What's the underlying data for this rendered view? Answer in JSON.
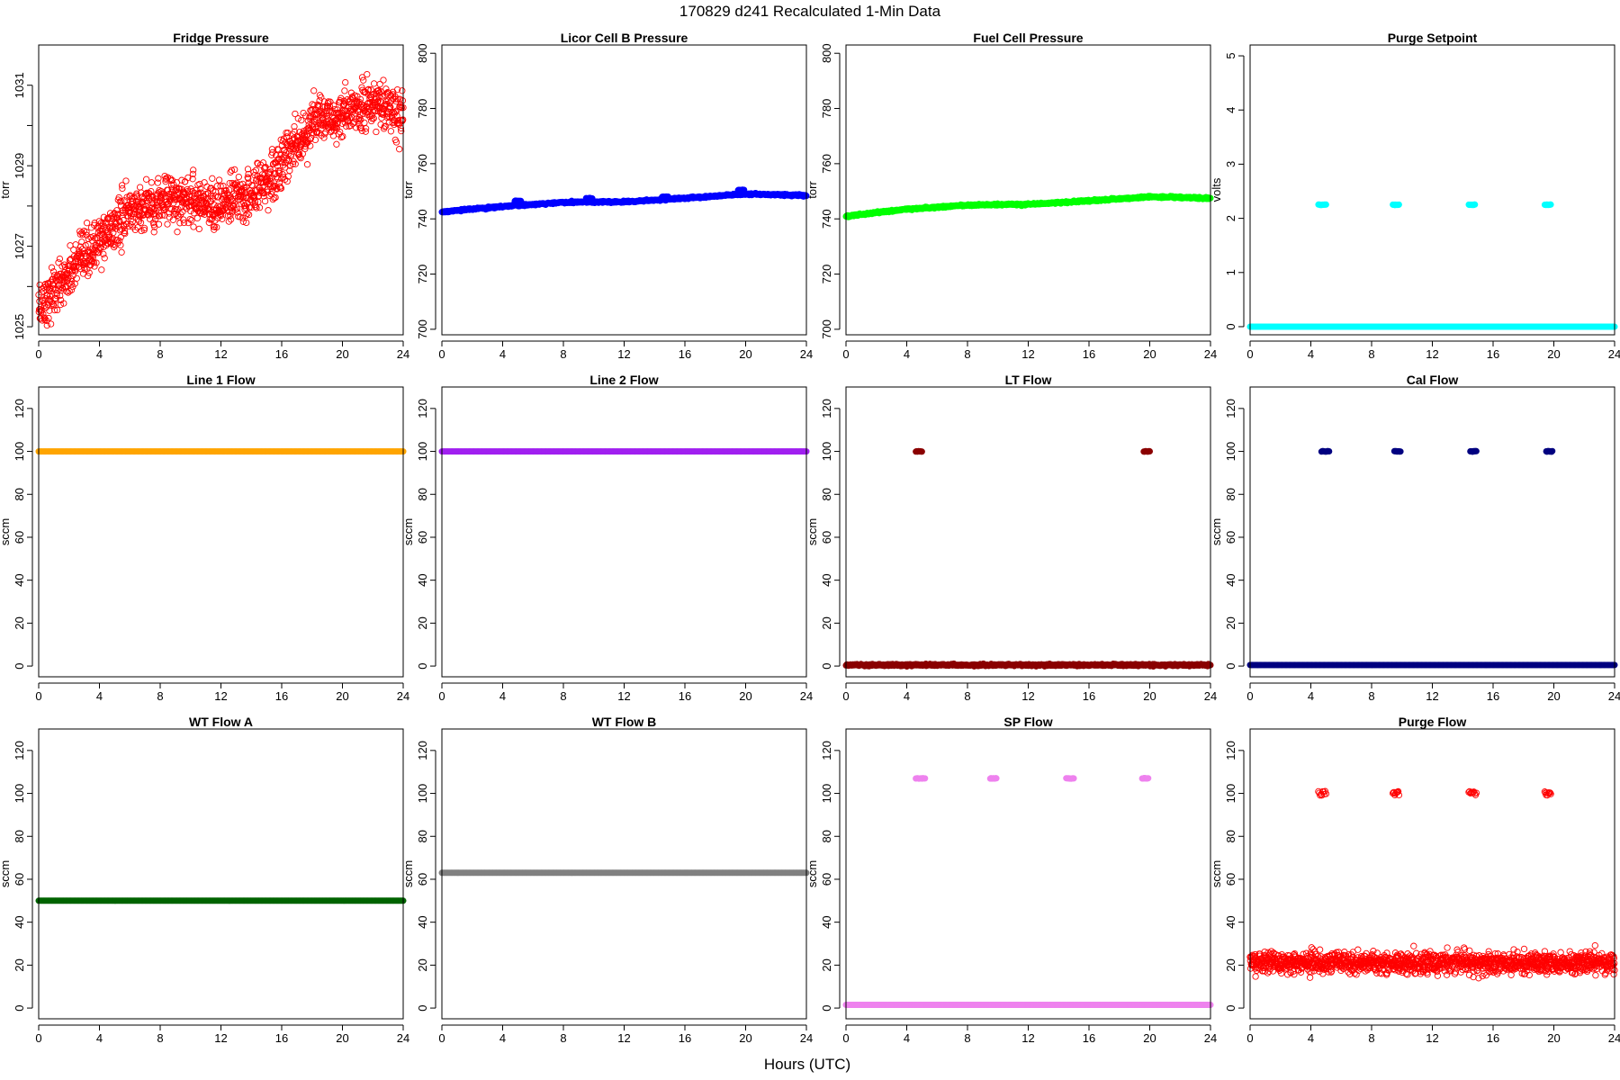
{
  "figure": {
    "title": "170829   d241   Recalculated 1-Min Data",
    "xlabel": "Hours (UTC)"
  },
  "chart_data": [
    {
      "type": "scatter",
      "title": "Fridge Pressure",
      "ylabel": "torr",
      "color": "#ff0000",
      "marker": "open",
      "xlim": [
        0,
        24
      ],
      "ylim": [
        1024.8,
        1032
      ],
      "xticks": [
        0,
        4,
        8,
        12,
        16,
        20,
        24
      ],
      "yticks": [
        1025,
        1027,
        1029,
        1031
      ],
      "minor_yticks": [
        1026,
        1028,
        1030
      ],
      "series": [
        {
          "x": [
            0,
            2,
            4,
            6,
            8,
            10,
            12,
            14,
            16,
            17,
            18,
            20,
            22,
            24
          ],
          "y": [
            1025.5,
            1026.3,
            1027.1,
            1027.9,
            1028.1,
            1028.2,
            1028.0,
            1028.3,
            1029.0,
            1029.6,
            1030.1,
            1030.2,
            1030.6,
            1030.2
          ],
          "noise": 0.55
        }
      ]
    },
    {
      "type": "scatter",
      "title": "Licor Cell B Pressure",
      "ylabel": "torr",
      "color": "#0000ff",
      "marker": "filled",
      "xlim": [
        0,
        24
      ],
      "ylim": [
        698,
        803
      ],
      "xticks": [
        0,
        4,
        8,
        12,
        16,
        20,
        24
      ],
      "yticks": [
        700,
        720,
        740,
        760,
        780,
        800
      ],
      "series": [
        {
          "x": [
            0,
            4,
            8,
            12,
            16,
            20,
            24
          ],
          "y": [
            742.5,
            744.5,
            746,
            746.2,
            747.5,
            749,
            748.5
          ],
          "noise": 0.3
        }
      ],
      "events": [
        {
          "x": [
            4.8,
            5.2
          ],
          "y": 746.5
        },
        {
          "x": [
            9.5,
            9.9
          ],
          "y": 747.5
        },
        {
          "x": [
            14.5,
            14.9
          ],
          "y": 748
        },
        {
          "x": [
            19.5,
            19.9
          ],
          "y": 750.5
        }
      ]
    },
    {
      "type": "scatter",
      "title": "Fuel Cell Pressure",
      "ylabel": "torr",
      "color": "#00ff00",
      "marker": "filled",
      "xlim": [
        0,
        24
      ],
      "ylim": [
        698,
        803
      ],
      "xticks": [
        0,
        4,
        8,
        12,
        16,
        20,
        24
      ],
      "yticks": [
        700,
        720,
        740,
        760,
        780,
        800
      ],
      "series": [
        {
          "x": [
            0,
            4,
            8,
            12,
            16,
            20,
            24
          ],
          "y": [
            741,
            743.5,
            745,
            745.3,
            746.5,
            748,
            747.5
          ],
          "noise": 0.3
        }
      ]
    },
    {
      "type": "scatter",
      "title": "Purge Setpoint",
      "ylabel": "volts",
      "color": "#00ffff",
      "marker": "filled",
      "xlim": [
        0,
        24
      ],
      "ylim": [
        -0.15,
        5.2
      ],
      "xticks": [
        0,
        4,
        8,
        12,
        16,
        20,
        24
      ],
      "yticks": [
        0,
        1,
        2,
        3,
        4,
        5
      ],
      "series": [
        {
          "x": [
            0,
            24
          ],
          "y": [
            0,
            0
          ],
          "noise": 0
        }
      ],
      "events": [
        {
          "x": [
            4.5,
            5.0
          ],
          "y": 2.25
        },
        {
          "x": [
            9.4,
            9.8
          ],
          "y": 2.25
        },
        {
          "x": [
            14.4,
            14.8
          ],
          "y": 2.25
        },
        {
          "x": [
            19.4,
            19.8
          ],
          "y": 2.25
        }
      ]
    },
    {
      "type": "scatter",
      "title": "Line 1 Flow",
      "ylabel": "sccm",
      "color": "#ffa500",
      "marker": "filled",
      "xlim": [
        0,
        24
      ],
      "ylim": [
        -5,
        130
      ],
      "xticks": [
        0,
        4,
        8,
        12,
        16,
        20,
        24
      ],
      "yticks": [
        0,
        20,
        40,
        60,
        80,
        100,
        120
      ],
      "series": [
        {
          "x": [
            0,
            24
          ],
          "y": [
            100,
            100
          ],
          "noise": 0
        }
      ]
    },
    {
      "type": "scatter",
      "title": "Line 2 Flow",
      "ylabel": "sccm",
      "color": "#a020f0",
      "marker": "filled",
      "xlim": [
        0,
        24
      ],
      "ylim": [
        -5,
        130
      ],
      "xticks": [
        0,
        4,
        8,
        12,
        16,
        20,
        24
      ],
      "yticks": [
        0,
        20,
        40,
        60,
        80,
        100,
        120
      ],
      "series": [
        {
          "x": [
            0,
            24
          ],
          "y": [
            100,
            100
          ],
          "noise": 0
        }
      ]
    },
    {
      "type": "scatter",
      "title": "LT Flow",
      "ylabel": "sccm",
      "color": "#8b0000",
      "marker": "filled",
      "xlim": [
        0,
        24
      ],
      "ylim": [
        -5,
        130
      ],
      "xticks": [
        0,
        4,
        8,
        12,
        16,
        20,
        24
      ],
      "yticks": [
        0,
        20,
        40,
        60,
        80,
        100,
        120
      ],
      "series": [
        {
          "x": [
            0,
            24
          ],
          "y": [
            0.5,
            0.5
          ],
          "noise": 0.4
        }
      ],
      "events": [
        {
          "x": [
            4.6,
            5.0
          ],
          "y": 100
        },
        {
          "x": [
            19.6,
            20.0
          ],
          "y": 100
        }
      ]
    },
    {
      "type": "scatter",
      "title": "Cal Flow",
      "ylabel": "sccm",
      "color": "#000080",
      "marker": "filled",
      "xlim": [
        0,
        24
      ],
      "ylim": [
        -5,
        130
      ],
      "xticks": [
        0,
        4,
        8,
        12,
        16,
        20,
        24
      ],
      "yticks": [
        0,
        20,
        40,
        60,
        80,
        100,
        120
      ],
      "series": [
        {
          "x": [
            0,
            24
          ],
          "y": [
            0.5,
            0.5
          ],
          "noise": 0
        }
      ],
      "events": [
        {
          "x": [
            4.7,
            5.2
          ],
          "y": 100
        },
        {
          "x": [
            9.5,
            9.9
          ],
          "y": 100
        },
        {
          "x": [
            14.5,
            14.9
          ],
          "y": 100
        },
        {
          "x": [
            19.5,
            19.9
          ],
          "y": 100
        }
      ]
    },
    {
      "type": "scatter",
      "title": "WT Flow A",
      "ylabel": "sccm",
      "color": "#006400",
      "marker": "filled",
      "xlim": [
        0,
        24
      ],
      "ylim": [
        -5,
        130
      ],
      "xticks": [
        0,
        4,
        8,
        12,
        16,
        20,
        24
      ],
      "yticks": [
        0,
        20,
        40,
        60,
        80,
        100,
        120
      ],
      "series": [
        {
          "x": [
            0,
            24
          ],
          "y": [
            50,
            50
          ],
          "noise": 0
        }
      ]
    },
    {
      "type": "scatter",
      "title": "WT Flow B",
      "ylabel": "sccm",
      "color": "#808080",
      "marker": "filled",
      "xlim": [
        0,
        24
      ],
      "ylim": [
        -5,
        130
      ],
      "xticks": [
        0,
        4,
        8,
        12,
        16,
        20,
        24
      ],
      "yticks": [
        0,
        20,
        40,
        60,
        80,
        100,
        120
      ],
      "series": [
        {
          "x": [
            0,
            24
          ],
          "y": [
            63,
            63
          ],
          "noise": 0
        }
      ]
    },
    {
      "type": "scatter",
      "title": "SP Flow",
      "ylabel": "sccm",
      "color": "#ee82ee",
      "marker": "filled",
      "xlim": [
        0,
        24
      ],
      "ylim": [
        -5,
        130
      ],
      "xticks": [
        0,
        4,
        8,
        12,
        16,
        20,
        24
      ],
      "yticks": [
        0,
        20,
        40,
        60,
        80,
        100,
        120
      ],
      "series": [
        {
          "x": [
            0,
            24
          ],
          "y": [
            1.5,
            1.5
          ],
          "noise": 0
        }
      ],
      "events": [
        {
          "x": [
            4.6,
            5.2
          ],
          "y": 107
        },
        {
          "x": [
            9.5,
            9.9
          ],
          "y": 107
        },
        {
          "x": [
            14.5,
            15.0
          ],
          "y": 107
        },
        {
          "x": [
            19.5,
            19.9
          ],
          "y": 107
        }
      ]
    },
    {
      "type": "scatter",
      "title": "Purge Flow",
      "ylabel": "sccm",
      "color": "#ff0000",
      "marker": "open",
      "xlim": [
        0,
        24
      ],
      "ylim": [
        -5,
        130
      ],
      "xticks": [
        0,
        4,
        8,
        12,
        16,
        20,
        24
      ],
      "yticks": [
        0,
        20,
        40,
        60,
        80,
        100,
        120
      ],
      "series": [
        {
          "x": [
            0,
            24
          ],
          "y": [
            21,
            21
          ],
          "noise": 4.5
        }
      ],
      "events": [
        {
          "x": [
            4.5,
            5.0
          ],
          "y": 100
        },
        {
          "x": [
            9.4,
            9.8
          ],
          "y": 100
        },
        {
          "x": [
            14.4,
            14.9
          ],
          "y": 100
        },
        {
          "x": [
            19.4,
            19.8
          ],
          "y": 100
        }
      ]
    }
  ]
}
